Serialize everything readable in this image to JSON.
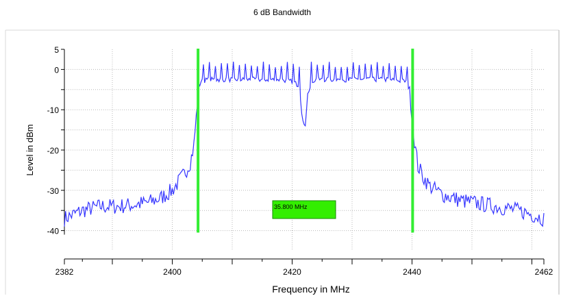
{
  "chart_data": {
    "type": "line",
    "title": "6 dB Bandwidth",
    "xlabel": "Frequency in MHz",
    "ylabel": "Level in dBm",
    "xlim": [
      2382,
      2462
    ],
    "ylim": [
      -45,
      5
    ],
    "x_ticks": [
      2382,
      2400,
      2420,
      2440,
      2462
    ],
    "x_tick_labels": [
      "2382",
      "2400",
      "2420",
      "2440",
      "2462"
    ],
    "y_ticks": [
      5,
      0,
      -10,
      -20,
      -30,
      -40
    ],
    "y_tick_labels": [
      "5",
      "0",
      "-10",
      "-20",
      "-30",
      "-40"
    ],
    "grid": true,
    "series": [
      {
        "color": "#3333ff",
        "x": [
          2382,
          2385,
          2388,
          2391,
          2394,
          2396,
          2398,
          2400,
          2401,
          2402,
          2403,
          2403.6,
          2404.0,
          2404.3,
          2404.6,
          2406,
          2410,
          2415,
          2418,
          2420,
          2421.2,
          2421.6,
          2421.9,
          2422.2,
          2422.6,
          2423.2,
          2424,
          2428,
          2432,
          2436,
          2439.3,
          2439.8,
          2440.2,
          2440.6,
          2441,
          2442,
          2443,
          2445,
          2448,
          2452,
          2456,
          2459,
          2462
        ],
        "y": [
          -37,
          -35,
          -34,
          -34,
          -33.5,
          -33,
          -32,
          -30,
          -28,
          -26,
          -23,
          -19,
          -12,
          -6,
          -3,
          -2.5,
          -2.5,
          -2.5,
          -2.5,
          -3,
          -4,
          -11,
          -13.5,
          -14,
          -6,
          -3,
          -2.5,
          -2.5,
          -2.5,
          -2.5,
          -3,
          -8,
          -15,
          -20,
          -24,
          -27,
          -29,
          -31,
          -32.5,
          -33.5,
          -34.5,
          -35.5,
          -37
        ]
      }
    ],
    "markers": [
      {
        "x": 2404.3,
        "color": "#33ee33"
      },
      {
        "x": 2440.1,
        "color": "#33ee33"
      }
    ],
    "annotation": {
      "text": "35.800 MHz",
      "x": 2426,
      "y": -34,
      "color": "#33ee00"
    }
  }
}
